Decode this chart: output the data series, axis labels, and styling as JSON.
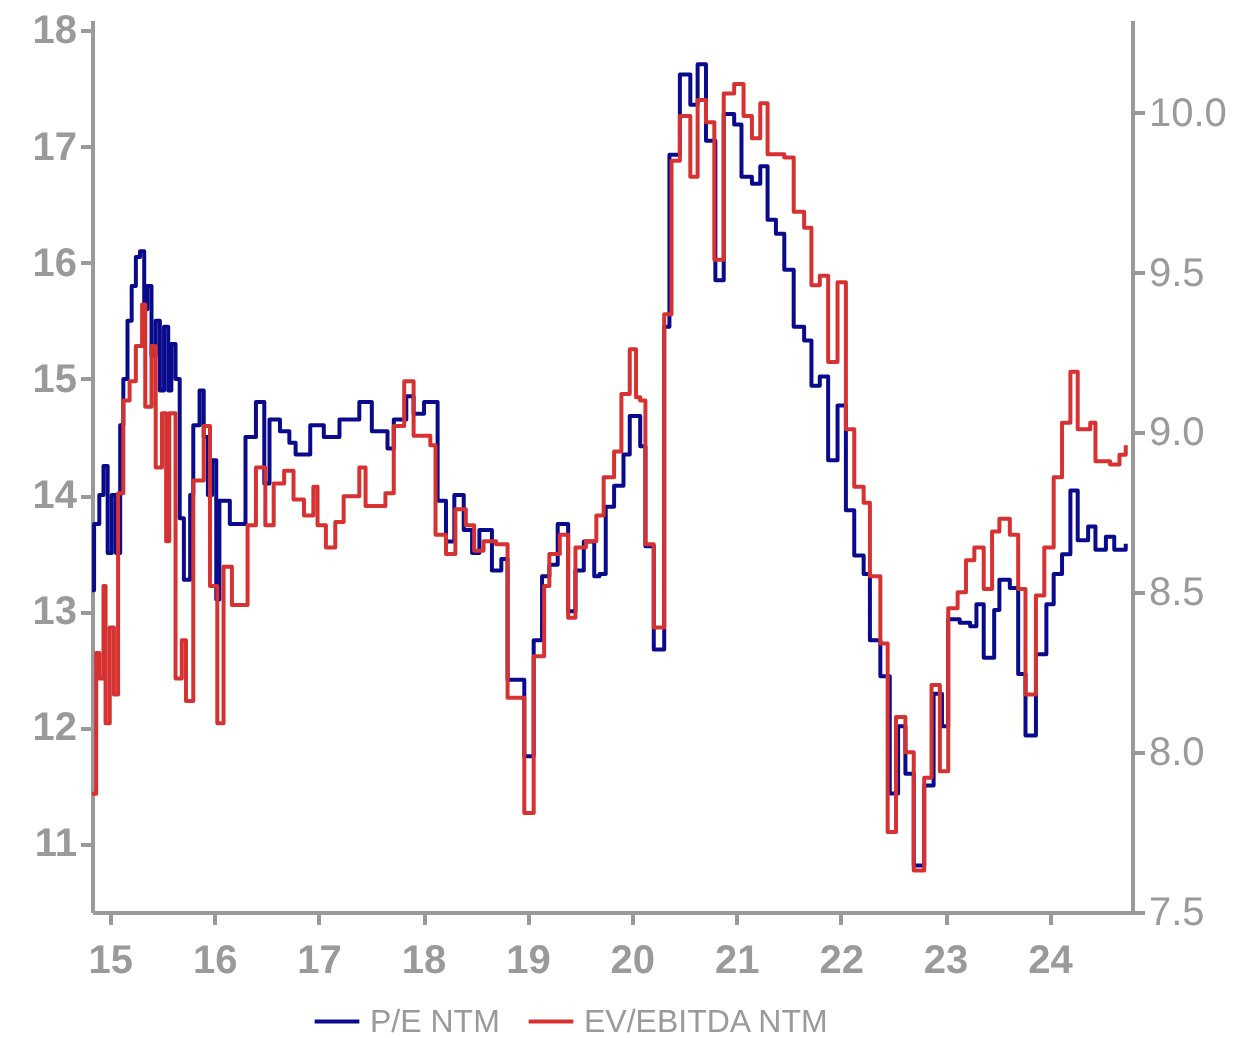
{
  "chart_data": {
    "type": "step",
    "xlim": [
      14.83,
      24.79
    ],
    "xticks": [
      15,
      16,
      17,
      18,
      19,
      20,
      21,
      22,
      23,
      24
    ],
    "ylim": [
      10.41,
      18.09
    ],
    "yticks": [
      11,
      12,
      13,
      14,
      15,
      16,
      17,
      18
    ],
    "y2lim": [
      7.5,
      10.29
    ],
    "y2ticks": [
      {
        "value": 7.5,
        "label": "7.5"
      },
      {
        "value": 8,
        "label": "8.0"
      },
      {
        "value": 8.5,
        "label": "8.5"
      },
      {
        "value": 9,
        "label": "9.0"
      },
      {
        "value": 9.5,
        "label": "9.5"
      },
      {
        "value": 10,
        "label": "10.0"
      }
    ],
    "grid": false,
    "legend": "bottom",
    "line_style": "solid",
    "marker": "none",
    "series": [
      {
        "name": "P/E NTM",
        "color": "#0a0a8c",
        "x": [
          14.83,
          14.85,
          14.9,
          14.94,
          14.98,
          15.02,
          15.06,
          15.1,
          15.13,
          15.17,
          15.21,
          15.25,
          15.29,
          15.33,
          15.36,
          15.4,
          15.44,
          15.48,
          15.52,
          15.56,
          15.59,
          15.63,
          15.67,
          15.71,
          15.77,
          15.8,
          15.86,
          15.9,
          15.94,
          15.98,
          16.02,
          16.05,
          16.15,
          16.3,
          16.4,
          16.48,
          16.53,
          16.63,
          16.72,
          16.78,
          16.92,
          17.05,
          17.2,
          17.39,
          17.51,
          17.66,
          17.72,
          17.84,
          17.91,
          18.01,
          18.14,
          18.22,
          18.3,
          18.39,
          18.47,
          18.54,
          18.66,
          18.75,
          18.81,
          18.97,
          19.06,
          19.14,
          19.21,
          19.29,
          19.39,
          19.46,
          19.54,
          19.64,
          19.69,
          19.75,
          19.83,
          19.92,
          19.98,
          20.08,
          20.13,
          20.21,
          20.31,
          20.36,
          20.46,
          20.56,
          20.63,
          20.71,
          20.8,
          20.88,
          20.98,
          21.05,
          21.15,
          21.23,
          21.3,
          21.38,
          21.46,
          21.55,
          21.65,
          21.72,
          21.8,
          21.88,
          21.97,
          22.05,
          22.13,
          22.22,
          22.28,
          22.38,
          22.47,
          22.55,
          22.62,
          22.7,
          22.8,
          22.89,
          22.97,
          23.03,
          23.14,
          23.24,
          23.3,
          23.37,
          23.47,
          23.52,
          23.62,
          23.7,
          23.77,
          23.87,
          23.97,
          24.04,
          24.12,
          24.2,
          24.27,
          24.37,
          24.44,
          24.54,
          24.62,
          24.73
        ],
        "values": [
          13.18,
          13.75,
          14.0,
          14.25,
          13.5,
          14.0,
          13.5,
          14.6,
          15.0,
          15.5,
          15.8,
          16.05,
          16.1,
          15.6,
          15.8,
          15.2,
          15.5,
          14.9,
          15.45,
          14.9,
          15.3,
          15.0,
          13.8,
          13.27,
          14.0,
          14.6,
          14.9,
          14.5,
          14.0,
          14.3,
          13.1,
          13.95,
          13.75,
          14.5,
          14.8,
          14.1,
          14.65,
          14.55,
          14.45,
          14.35,
          14.6,
          14.5,
          14.65,
          14.8,
          14.55,
          14.4,
          14.65,
          14.85,
          14.7,
          14.8,
          13.95,
          13.6,
          14.0,
          13.7,
          13.5,
          13.7,
          13.35,
          13.45,
          12.41,
          11.75,
          12.75,
          13.3,
          13.4,
          13.75,
          13.0,
          13.35,
          13.6,
          13.3,
          13.32,
          13.9,
          14.08,
          14.35,
          14.68,
          14.42,
          13.56,
          12.67,
          15.45,
          16.93,
          17.62,
          17.36,
          17.71,
          17.05,
          15.85,
          17.28,
          17.19,
          16.74,
          16.68,
          16.83,
          16.37,
          16.25,
          15.94,
          15.45,
          15.33,
          14.94,
          15.02,
          14.3,
          14.77,
          13.87,
          13.48,
          13.32,
          12.75,
          12.44,
          11.43,
          12.01,
          11.6,
          10.81,
          11.5,
          12.29,
          12.01,
          12.93,
          12.9,
          12.87,
          13.06,
          12.6,
          13.01,
          13.27,
          13.2,
          12.46,
          11.93,
          12.63,
          13.06,
          13.32,
          13.49,
          14.04,
          13.61,
          13.73,
          13.53,
          13.64,
          13.53,
          13.58
        ]
      },
      {
        "name": "EV/EBITDA NTM",
        "color": "#d63232",
        "axis": "y2",
        "x": [
          14.83,
          14.87,
          14.9,
          14.94,
          14.96,
          15.0,
          15.04,
          15.08,
          15.13,
          15.19,
          15.25,
          15.31,
          15.34,
          15.4,
          15.44,
          15.5,
          15.54,
          15.57,
          15.63,
          15.69,
          15.73,
          15.8,
          15.9,
          15.96,
          16.03,
          16.09,
          16.17,
          16.32,
          16.4,
          16.49,
          16.57,
          16.67,
          16.76,
          16.86,
          16.95,
          16.99,
          17.07,
          17.16,
          17.24,
          17.39,
          17.45,
          17.64,
          17.72,
          17.82,
          17.91,
          18.07,
          18.12,
          18.22,
          18.31,
          18.41,
          18.49,
          18.58,
          18.7,
          18.81,
          18.97,
          19.06,
          19.16,
          19.21,
          19.31,
          19.39,
          19.46,
          19.56,
          19.66,
          19.73,
          19.83,
          19.9,
          19.98,
          20.04,
          20.08,
          20.13,
          20.21,
          20.31,
          20.38,
          20.46,
          20.56,
          20.63,
          20.71,
          20.79,
          20.88,
          20.98,
          21.07,
          21.15,
          21.23,
          21.3,
          21.46,
          21.55,
          21.65,
          21.72,
          21.8,
          21.88,
          21.97,
          22.05,
          22.13,
          22.22,
          22.28,
          22.38,
          22.45,
          22.53,
          22.62,
          22.7,
          22.8,
          22.87,
          22.95,
          23.03,
          23.12,
          23.2,
          23.28,
          23.37,
          23.45,
          23.52,
          23.62,
          23.7,
          23.77,
          23.87,
          23.95,
          24.04,
          24.12,
          24.2,
          24.27,
          24.39,
          24.44,
          24.58,
          24.67,
          24.73
        ],
        "values": [
          7.87,
          8.31,
          8.23,
          8.52,
          8.09,
          8.39,
          8.18,
          8.81,
          9.1,
          9.16,
          9.27,
          9.4,
          9.08,
          9.27,
          8.89,
          9.06,
          8.66,
          9.06,
          8.23,
          8.35,
          8.16,
          8.85,
          9.02,
          8.52,
          8.09,
          8.58,
          8.46,
          8.71,
          8.89,
          8.71,
          8.84,
          8.88,
          8.79,
          8.74,
          8.83,
          8.71,
          8.64,
          8.72,
          8.8,
          8.89,
          8.77,
          8.81,
          9.02,
          9.16,
          8.99,
          8.96,
          8.68,
          8.62,
          8.76,
          8.71,
          8.63,
          8.66,
          8.65,
          8.17,
          7.81,
          8.3,
          8.52,
          8.62,
          8.68,
          8.42,
          8.64,
          8.66,
          8.74,
          8.86,
          8.94,
          9.12,
          9.26,
          9.11,
          9.1,
          8.65,
          8.39,
          9.37,
          9.85,
          9.99,
          9.8,
          10.04,
          9.97,
          9.54,
          10.06,
          10.09,
          9.99,
          9.92,
          10.03,
          9.87,
          9.86,
          9.69,
          9.64,
          9.46,
          9.49,
          9.22,
          9.47,
          9.01,
          8.83,
          8.78,
          8.55,
          8.34,
          7.75,
          8.11,
          8.0,
          7.63,
          7.92,
          8.21,
          7.94,
          8.45,
          8.5,
          8.6,
          8.64,
          8.51,
          8.69,
          8.73,
          8.68,
          8.51,
          8.18,
          8.49,
          8.64,
          8.86,
          9.03,
          9.19,
          9.01,
          9.03,
          8.91,
          8.9,
          8.93,
          8.96
        ]
      }
    ]
  }
}
